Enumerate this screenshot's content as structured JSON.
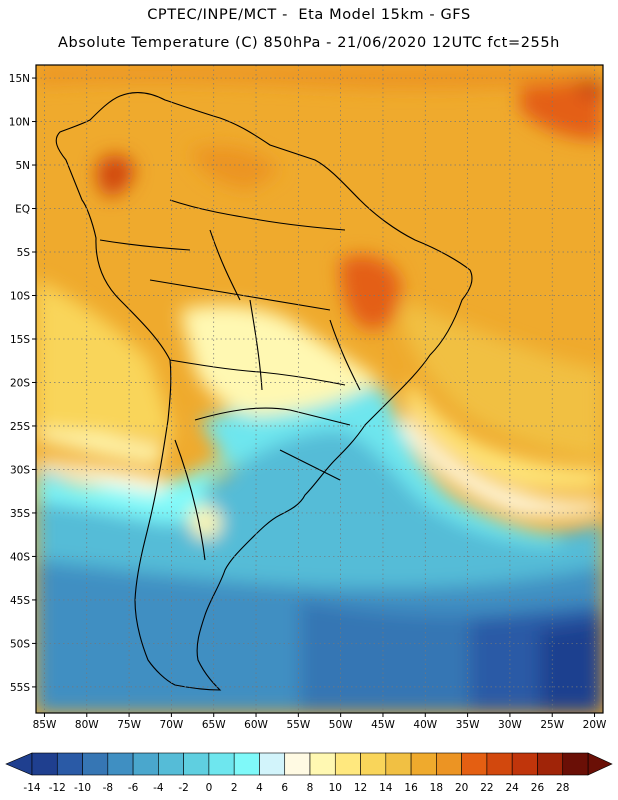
{
  "header": {
    "title_line1": "CPTEC/INPE/MCT -  Eta Model 15km - GFS",
    "title_line2": "Absolute Temperature (C) 850hPa - 21/06/2020 12UTC fct=255h"
  },
  "map": {
    "lat_labels": [
      "15N",
      "10N",
      "5N",
      "EQ",
      "5S",
      "10S",
      "15S",
      "20S",
      "25S",
      "30S",
      "35S",
      "40S",
      "45S",
      "50S",
      "55S"
    ],
    "lat_values": [
      15,
      10,
      5,
      0,
      -5,
      -10,
      -15,
      -20,
      -25,
      -30,
      -35,
      -40,
      -45,
      -50,
      -55
    ],
    "lon_labels": [
      "85W",
      "80W",
      "75W",
      "70W",
      "65W",
      "60W",
      "55W",
      "50W",
      "45W",
      "40W",
      "35W",
      "30W",
      "25W",
      "20W"
    ],
    "lon_values": [
      -85,
      -80,
      -75,
      -70,
      -65,
      -60,
      -55,
      -50,
      -45,
      -40,
      -35,
      -30,
      -25,
      -20
    ],
    "lat_range": [
      -58,
      16.5
    ],
    "lon_range": [
      -86,
      -19
    ]
  },
  "colorbar": {
    "tick_labels": [
      "-14",
      "-12",
      "-10",
      "-8",
      "-6",
      "-4",
      "-2",
      "0",
      "2",
      "4",
      "6",
      "8",
      "10",
      "12",
      "14",
      "16",
      "18",
      "20",
      "22",
      "24",
      "26",
      "28"
    ],
    "colors": [
      "#1f3f8f",
      "#2a5aa6",
      "#3676b4",
      "#3f8fc2",
      "#4aa7cd",
      "#55bcd7",
      "#5fcfe0",
      "#6ee6ee",
      "#7ff9f9",
      "#d2f4fb",
      "#fffae3",
      "#fff8b2",
      "#ffe87e",
      "#f9d55a",
      "#f1c043",
      "#efaa2d",
      "#ec9423",
      "#e45f12",
      "#d2480d",
      "#c0350b",
      "#a02408",
      "#6a0f06"
    ],
    "under_color": "#1f3f8f",
    "over_color": "#6a0f06"
  }
}
